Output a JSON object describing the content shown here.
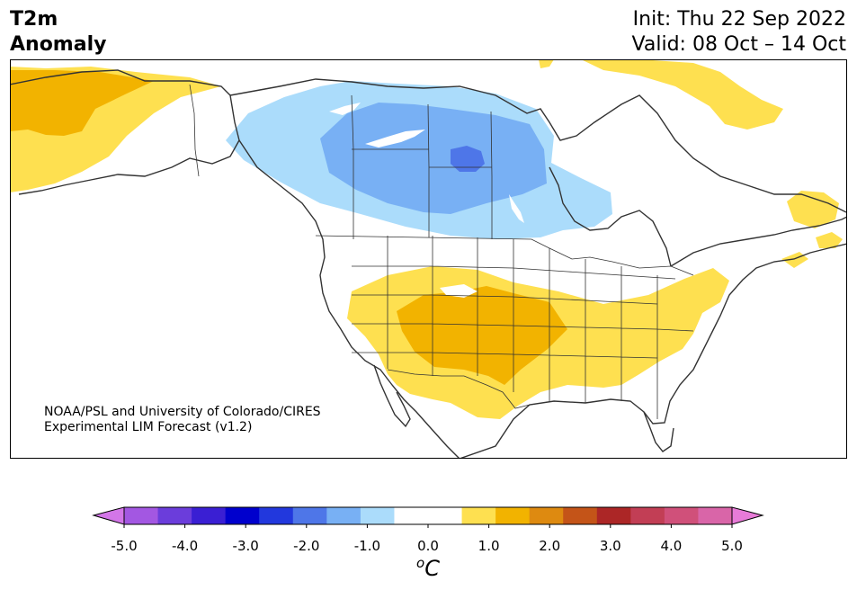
{
  "title": {
    "line1": "T2m",
    "line2": "Anomaly"
  },
  "dates": {
    "init": "Init: Thu 22 Sep 2022",
    "valid": "Valid: 08 Oct – 14 Oct"
  },
  "credit": {
    "line1": "NOAA/PSL and University of Colorado/CIRES",
    "line2": "Experimental LIM Forecast (v1.2)"
  },
  "colorbar": {
    "colors": [
      "#d376e8",
      "#a357e2",
      "#6b3ddb",
      "#3a1fd3",
      "#0000cd",
      "#2238dd",
      "#4e76e8",
      "#78b0f4",
      "#abdcfb",
      "#ffffff",
      "#ffffff",
      "#fee050",
      "#f2b300",
      "#de8a10",
      "#c45418",
      "#ac2626",
      "#c23e55",
      "#d0507a",
      "#d965a8",
      "#e87bd8"
    ],
    "ticks": [
      "-5.0",
      "-4.0",
      "-3.0",
      "-2.0",
      "-1.0",
      "0.0",
      "1.0",
      "2.0",
      "3.0",
      "4.0",
      "5.0"
    ],
    "unit_sup": "o",
    "unit_main": "C"
  },
  "map_palette": {
    "light_blue": "#abdcfb",
    "mid_blue": "#78b0f4",
    "dark_blue": "#4e76e8",
    "yellow": "#fee050",
    "orange": "#f2b300",
    "border": "#333333"
  }
}
